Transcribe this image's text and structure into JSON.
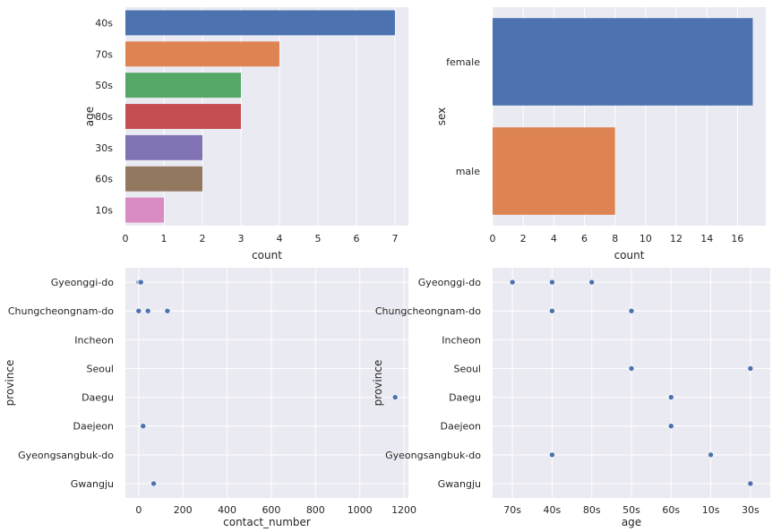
{
  "chart_data": [
    {
      "type": "bar",
      "orientation": "horizontal",
      "categories": [
        "40s",
        "70s",
        "50s",
        "80s",
        "30s",
        "60s",
        "10s"
      ],
      "values": [
        7,
        4,
        3,
        3,
        2,
        2,
        1
      ],
      "colors": [
        "#4c72b0",
        "#dd8452",
        "#55a868",
        "#c44e52",
        "#8172b3",
        "#937860",
        "#da8bc3"
      ],
      "xlabel": "count",
      "ylabel": "age",
      "xlim": [
        0,
        7.35
      ],
      "xticks": [
        0,
        1,
        2,
        3,
        4,
        5,
        6,
        7
      ],
      "grid": true
    },
    {
      "type": "bar",
      "orientation": "horizontal",
      "categories": [
        "female",
        "male"
      ],
      "values": [
        17,
        8
      ],
      "colors": [
        "#4c72b0",
        "#dd8452"
      ],
      "xlabel": "count",
      "ylabel": "sex",
      "xlim": [
        0,
        17.85
      ],
      "xticks": [
        0,
        2,
        4,
        6,
        8,
        10,
        12,
        14,
        16
      ],
      "grid": true
    },
    {
      "type": "scatter",
      "categories": [
        "Gyeonggi-do",
        "Chungcheongnam-do",
        "Incheon",
        "Seoul",
        "Daegu",
        "Daejeon",
        "Gyeongsangbuk-do",
        "Gwangju"
      ],
      "points": [
        {
          "x": 0,
          "y": "Gyeonggi-do"
        },
        {
          "x": 5,
          "y": "Gyeonggi-do"
        },
        {
          "x": 10,
          "y": "Gyeonggi-do"
        },
        {
          "x": 0,
          "y": "Chungcheongnam-do"
        },
        {
          "x": 42,
          "y": "Chungcheongnam-do"
        },
        {
          "x": 130,
          "y": "Chungcheongnam-do"
        },
        {
          "x": 1160,
          "y": "Daegu"
        },
        {
          "x": 20,
          "y": "Daejeon"
        },
        {
          "x": 68,
          "y": "Gwangju"
        }
      ],
      "color": "#4c72b0",
      "xlabel": "contact_number",
      "ylabel": "province",
      "xlim": [
        -60,
        1220
      ],
      "xticks": [
        0,
        200,
        400,
        600,
        800,
        1000,
        1200
      ],
      "grid": true
    },
    {
      "type": "scatter",
      "categories": [
        "Gyeonggi-do",
        "Chungcheongnam-do",
        "Incheon",
        "Seoul",
        "Daegu",
        "Daejeon",
        "Gyeongsangbuk-do",
        "Gwangju"
      ],
      "xcategories": [
        "70s",
        "40s",
        "80s",
        "50s",
        "60s",
        "10s",
        "30s"
      ],
      "points": [
        {
          "x": "70s",
          "y": "Gyeonggi-do"
        },
        {
          "x": "40s",
          "y": "Gyeonggi-do"
        },
        {
          "x": "80s",
          "y": "Gyeonggi-do"
        },
        {
          "x": "40s",
          "y": "Chungcheongnam-do"
        },
        {
          "x": "50s",
          "y": "Chungcheongnam-do"
        },
        {
          "x": "50s",
          "y": "Seoul"
        },
        {
          "x": "30s",
          "y": "Seoul"
        },
        {
          "x": "60s",
          "y": "Daegu"
        },
        {
          "x": "60s",
          "y": "Daejeon"
        },
        {
          "x": "40s",
          "y": "Gyeongsangbuk-do"
        },
        {
          "x": "10s",
          "y": "Gyeongsangbuk-do"
        },
        {
          "x": "30s",
          "y": "Gwangju"
        }
      ],
      "color": "#4c72b0",
      "xlabel": "age",
      "ylabel": "province",
      "grid": true
    }
  ]
}
